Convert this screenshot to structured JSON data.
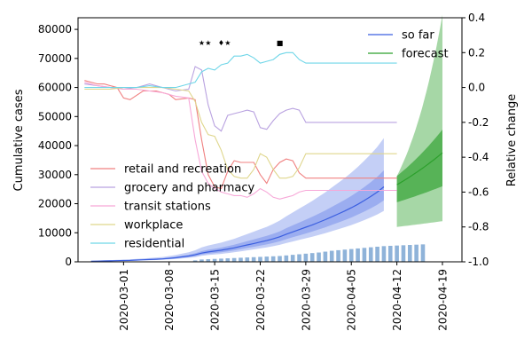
{
  "chart_data": {
    "type": "line",
    "title": "",
    "x_range": [
      "2020-02-23",
      "2020-04-22"
    ],
    "x_ticks": [
      "2020-03-01",
      "2020-03-08",
      "2020-03-15",
      "2020-03-22",
      "2020-03-29",
      "2020-04-05",
      "2020-04-12",
      "2020-04-19"
    ],
    "left_axis": {
      "label": "Cumulative cases",
      "range": [
        0,
        84000
      ],
      "ticks": [
        0,
        10000,
        20000,
        30000,
        40000,
        50000,
        60000,
        70000,
        80000
      ]
    },
    "right_axis": {
      "label": "Relative change",
      "range": [
        -1.0,
        0.4
      ],
      "ticks": [
        "-1.0",
        "-0.8",
        "-0.6",
        "-0.4",
        "-0.2",
        "0.0",
        "0.2",
        "0.4"
      ]
    },
    "cases_so_far": {
      "name": "so far",
      "color": "#3b5fe0",
      "start": "2020-02-25",
      "values": [
        200,
        250,
        300,
        350,
        400,
        450,
        500,
        600,
        700,
        800,
        900,
        1000,
        1200,
        1400,
        1700,
        2000,
        2400,
        3000,
        3400,
        3700,
        4000,
        4400,
        4800,
        5300,
        5800,
        6300,
        6800,
        7300,
        7900,
        8600,
        9500,
        10300,
        11100,
        11900,
        12700,
        13600,
        14500,
        15500,
        16500,
        17500,
        18600,
        19800,
        21100,
        22500,
        24000,
        25800
      ],
      "band_low_ratio": 0.82,
      "band_high_ratio": 1.22,
      "outer_low_ratio": 0.68,
      "outer_high_ratio": 1.65
    },
    "daily_bars": {
      "color": "#8fb3d9",
      "start": "2020-03-12",
      "values": [
        500,
        800,
        900,
        1000,
        1100,
        1200,
        1300,
        1400,
        1500,
        1600,
        1700,
        1800,
        1900,
        2000,
        2200,
        2400,
        2600,
        2800,
        3000,
        3200,
        3500,
        3800,
        4000,
        4200,
        4400,
        4600,
        4800,
        5000,
        5200,
        5400,
        5500,
        5600,
        5700,
        5800,
        5900,
        6000
      ]
    },
    "forecast": {
      "name": "forecast",
      "color": "#2ca02c",
      "start": "2020-04-12",
      "end": "2020-04-19",
      "median": [
        26500,
        37500
      ],
      "inner": [
        [
          20500,
          29500
        ],
        [
          26000,
          45500
        ]
      ],
      "outer": [
        [
          12000,
          29500
        ],
        [
          14000,
          85000
        ]
      ]
    },
    "mobility": {
      "start": "2020-02-24",
      "end": "2020-04-12",
      "series": [
        {
          "name": "retail and recreation",
          "color": "#f08080",
          "points": [
            [
              "02-24",
              0.04
            ],
            [
              "02-26",
              0.02
            ],
            [
              "02-27",
              0.02
            ],
            [
              "02-28",
              0.01
            ],
            [
              "02-29",
              0.0
            ],
            [
              "03-01",
              -0.06
            ],
            [
              "03-02",
              -0.07
            ],
            [
              "03-04",
              -0.02
            ],
            [
              "03-06",
              -0.02
            ],
            [
              "03-08",
              -0.04
            ],
            [
              "03-09",
              -0.07
            ],
            [
              "03-11",
              -0.06
            ],
            [
              "03-12",
              -0.07
            ],
            [
              "03-13",
              -0.3
            ],
            [
              "03-14",
              -0.5
            ],
            [
              "03-15",
              -0.57
            ],
            [
              "03-16",
              -0.58
            ],
            [
              "03-17",
              -0.48
            ],
            [
              "03-18",
              -0.42
            ],
            [
              "03-19",
              -0.43
            ],
            [
              "03-21",
              -0.43
            ],
            [
              "03-22",
              -0.5
            ],
            [
              "03-23",
              -0.55
            ],
            [
              "03-24",
              -0.47
            ],
            [
              "03-25",
              -0.43
            ],
            [
              "03-26",
              -0.41
            ],
            [
              "03-27",
              -0.42
            ],
            [
              "03-28",
              -0.49
            ],
            [
              "03-29",
              -0.52
            ],
            [
              "04-12",
              -0.52
            ]
          ]
        },
        {
          "name": "grocery and pharmacy",
          "color": "#b9a2e0",
          "points": [
            [
              "02-24",
              0.02
            ],
            [
              "02-26",
              0.01
            ],
            [
              "02-28",
              0.0
            ],
            [
              "03-01",
              -0.01
            ],
            [
              "03-03",
              0.0
            ],
            [
              "03-05",
              0.02
            ],
            [
              "03-07",
              0.0
            ],
            [
              "03-09",
              -0.02
            ],
            [
              "03-11",
              -0.01
            ],
            [
              "03-12",
              0.12
            ],
            [
              "03-13",
              0.1
            ],
            [
              "03-14",
              -0.1
            ],
            [
              "03-15",
              -0.22
            ],
            [
              "03-16",
              -0.25
            ],
            [
              "03-17",
              -0.16
            ],
            [
              "03-18",
              -0.15
            ],
            [
              "03-19",
              -0.14
            ],
            [
              "03-20",
              -0.13
            ],
            [
              "03-21",
              -0.14
            ],
            [
              "03-22",
              -0.23
            ],
            [
              "03-23",
              -0.24
            ],
            [
              "03-24",
              -0.19
            ],
            [
              "03-25",
              -0.15
            ],
            [
              "03-26",
              -0.13
            ],
            [
              "03-27",
              -0.12
            ],
            [
              "03-28",
              -0.13
            ],
            [
              "03-29",
              -0.2
            ],
            [
              "04-12",
              -0.2
            ]
          ]
        },
        {
          "name": "transit stations",
          "color": "#f7a8d8",
          "points": [
            [
              "02-24",
              0.03
            ],
            [
              "02-26",
              0.01
            ],
            [
              "02-28",
              0.0
            ],
            [
              "03-01",
              -0.01
            ],
            [
              "03-03",
              -0.01
            ],
            [
              "03-05",
              -0.02
            ],
            [
              "03-07",
              -0.03
            ],
            [
              "03-09",
              -0.05
            ],
            [
              "03-11",
              -0.06
            ],
            [
              "03-12",
              -0.3
            ],
            [
              "03-13",
              -0.48
            ],
            [
              "03-14",
              -0.55
            ],
            [
              "03-15",
              -0.58
            ],
            [
              "03-16",
              -0.6
            ],
            [
              "03-17",
              -0.61
            ],
            [
              "03-18",
              -0.62
            ],
            [
              "03-19",
              -0.62
            ],
            [
              "03-20",
              -0.63
            ],
            [
              "03-21",
              -0.61
            ],
            [
              "03-22",
              -0.58
            ],
            [
              "03-23",
              -0.6
            ],
            [
              "03-24",
              -0.63
            ],
            [
              "03-25",
              -0.64
            ],
            [
              "03-26",
              -0.63
            ],
            [
              "03-27",
              -0.62
            ],
            [
              "03-28",
              -0.6
            ],
            [
              "03-29",
              -0.59
            ],
            [
              "04-12",
              -0.59
            ]
          ]
        },
        {
          "name": "workplace",
          "color": "#dfd68c",
          "points": [
            [
              "02-24",
              -0.01
            ],
            [
              "02-26",
              -0.01
            ],
            [
              "02-28",
              -0.01
            ],
            [
              "03-01",
              0.0
            ],
            [
              "03-03",
              0.0
            ],
            [
              "03-05",
              0.0
            ],
            [
              "03-07",
              0.0
            ],
            [
              "03-09",
              -0.01
            ],
            [
              "03-11",
              -0.02
            ],
            [
              "03-12",
              -0.08
            ],
            [
              "03-13",
              -0.2
            ],
            [
              "03-14",
              -0.27
            ],
            [
              "03-15",
              -0.28
            ],
            [
              "03-16",
              -0.36
            ],
            [
              "03-17",
              -0.47
            ],
            [
              "03-18",
              -0.51
            ],
            [
              "03-19",
              -0.52
            ],
            [
              "03-20",
              -0.52
            ],
            [
              "03-21",
              -0.47
            ],
            [
              "03-22",
              -0.38
            ],
            [
              "03-23",
              -0.4
            ],
            [
              "03-24",
              -0.47
            ],
            [
              "03-25",
              -0.52
            ],
            [
              "03-26",
              -0.52
            ],
            [
              "03-27",
              -0.51
            ],
            [
              "03-28",
              -0.46
            ],
            [
              "03-29",
              -0.38
            ],
            [
              "04-12",
              -0.38
            ]
          ]
        },
        {
          "name": "residential",
          "color": "#6fd6e8",
          "points": [
            [
              "02-24",
              0.0
            ],
            [
              "02-26",
              0.0
            ],
            [
              "02-28",
              0.0
            ],
            [
              "03-01",
              0.0
            ],
            [
              "03-03",
              0.0
            ],
            [
              "03-05",
              0.01
            ],
            [
              "03-07",
              0.0
            ],
            [
              "03-09",
              0.0
            ],
            [
              "03-10",
              0.01
            ],
            [
              "03-11",
              0.02
            ],
            [
              "03-12",
              0.03
            ],
            [
              "03-13",
              0.09
            ],
            [
              "03-14",
              0.11
            ],
            [
              "03-15",
              0.1
            ],
            [
              "03-16",
              0.13
            ],
            [
              "03-17",
              0.14
            ],
            [
              "03-18",
              0.18
            ],
            [
              "03-19",
              0.18
            ],
            [
              "03-20",
              0.19
            ],
            [
              "03-21",
              0.17
            ],
            [
              "03-22",
              0.14
            ],
            [
              "03-23",
              0.15
            ],
            [
              "03-24",
              0.16
            ],
            [
              "03-25",
              0.19
            ],
            [
              "03-26",
              0.2
            ],
            [
              "03-27",
              0.2
            ],
            [
              "03-28",
              0.16
            ],
            [
              "03-29",
              0.14
            ],
            [
              "04-12",
              0.14
            ]
          ]
        }
      ]
    },
    "event_markers": [
      {
        "date": "2020-03-13",
        "symbol": "★"
      },
      {
        "date": "2020-03-14",
        "symbol": "★"
      },
      {
        "date": "2020-03-16",
        "symbol": "♦"
      },
      {
        "date": "2020-03-17",
        "symbol": "★"
      },
      {
        "date": "2020-03-25",
        "symbol": "■"
      }
    ],
    "legend_right": {
      "placement": "top-right",
      "entries": [
        "so far",
        "forecast"
      ]
    },
    "legend_left": {
      "placement": "center-left",
      "entries": [
        "retail and recreation",
        "grocery and pharmacy",
        "transit stations",
        "workplace",
        "residential"
      ]
    },
    "grid": false
  }
}
